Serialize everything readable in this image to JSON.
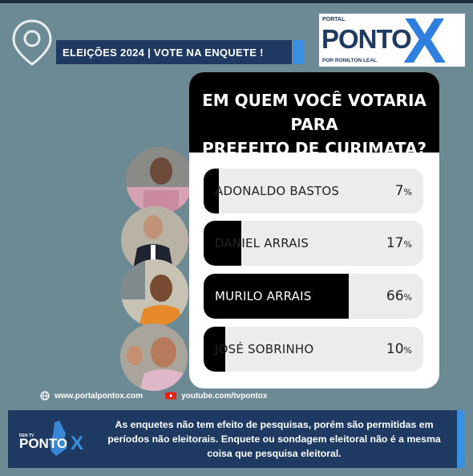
{
  "header": {
    "banner_text": "ELEIÇÕES 2024 | VOTE NA ENQUETE !",
    "logo": {
      "top": "PORTAL",
      "main": "PONTO",
      "mark": "X",
      "sub": "POR RONILTON LEAL"
    }
  },
  "poll": {
    "question_line1": "EM QUEM VOCÊ VOTARIA PARA",
    "question_line2": "PREFEITO DE CURIMATA?",
    "options": [
      {
        "name": "ADONALDO BASTOS",
        "percent_text": "7",
        "percent": 7
      },
      {
        "name": "DANIEL ARRAIS",
        "percent_text": "17",
        "percent": 17
      },
      {
        "name": "MURILO ARRAIS",
        "percent_text": "66",
        "percent": 66
      },
      {
        "name": "JOSÉ SOBRINHO",
        "percent_text": "10",
        "percent": 10
      }
    ],
    "percent_sign": "%"
  },
  "links": {
    "website": "www.portalpontox.com",
    "youtube": "youtube.com/tvpontox"
  },
  "footer": {
    "logo_small": "DEN TV",
    "logo_main": "PONTO",
    "logo_mark": "X",
    "disclaimer": "As enquetes não tem efeito de pesquisas, porém são permitidas em períodos não eleitorais. Enquete ou sondagem eleitoral não é a mesma coisa que pesquisa eleitoral."
  },
  "colors": {
    "background": "#6c8a93",
    "navy": "#1e3a63",
    "accent_blue": "#3b8fe0",
    "bar_fill": "#000000",
    "bar_track": "#ececec"
  },
  "icons": {
    "pin": "location-pin-icon",
    "globe": "globe-icon",
    "youtube": "youtube-icon"
  }
}
